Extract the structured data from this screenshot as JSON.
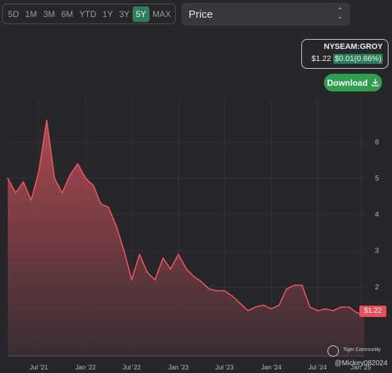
{
  "range_buttons": [
    "5D",
    "1M",
    "3M",
    "6M",
    "YTD",
    "1Y",
    "3Y",
    "5Y",
    "MAX"
  ],
  "active_range": "5Y",
  "metric_select": {
    "value": "Price"
  },
  "ticker": {
    "symbol": "NYSEAM:GROY",
    "price": "$1.22",
    "change": "$0.01(0.66%)"
  },
  "download": {
    "label": "Download"
  },
  "current_price_label": "$1.22",
  "watermark": {
    "brand": "Tiger Community",
    "user": "@Mickey082024"
  },
  "colors": {
    "line": "#f0565f",
    "fill_top": "#b54b52",
    "fill_bottom": "#3a2e33",
    "accent_green": "#2e7d5a",
    "download_green": "#2f9e50",
    "background": "#27262b"
  },
  "chart_data": {
    "type": "area",
    "x": [
      "2021-03",
      "2021-04",
      "2021-05",
      "2021-06",
      "2021-07",
      "2021-08",
      "2021-09",
      "2021-10",
      "2021-11",
      "2021-12",
      "2022-01",
      "2022-02",
      "2022-03",
      "2022-04",
      "2022-05",
      "2022-06",
      "2022-07",
      "2022-08",
      "2022-09",
      "2022-10",
      "2022-11",
      "2022-12",
      "2023-01",
      "2023-02",
      "2023-03",
      "2023-04",
      "2023-05",
      "2023-06",
      "2023-07",
      "2023-08",
      "2023-09",
      "2023-10",
      "2023-11",
      "2023-12",
      "2024-01",
      "2024-02",
      "2024-03",
      "2024-04",
      "2024-05",
      "2024-06",
      "2024-07",
      "2024-08",
      "2024-09",
      "2024-10",
      "2024-11",
      "2024-12",
      "2025-01"
    ],
    "values": [
      5.0,
      4.6,
      4.9,
      4.4,
      5.2,
      6.6,
      5.0,
      4.6,
      5.1,
      5.4,
      5.0,
      4.8,
      4.3,
      4.2,
      3.7,
      3.0,
      2.2,
      2.9,
      2.4,
      2.2,
      2.8,
      2.5,
      2.9,
      2.5,
      2.3,
      2.15,
      1.95,
      1.9,
      1.9,
      1.75,
      1.55,
      1.35,
      1.45,
      1.5,
      1.4,
      1.5,
      1.95,
      2.05,
      2.05,
      1.45,
      1.35,
      1.4,
      1.35,
      1.45,
      1.45,
      1.3,
      1.22
    ],
    "xlabel": "",
    "ylabel": "",
    "x_ticks": [
      "Jul '21",
      "Jan '22",
      "Jul '22",
      "Jan '23",
      "Jul '23",
      "Jan '24",
      "Jul '24",
      "Jan '25"
    ],
    "y_ticks": [
      "2",
      "3",
      "4",
      "5",
      "6"
    ],
    "ylim": [
      0.1,
      7.2
    ],
    "grid": true
  }
}
